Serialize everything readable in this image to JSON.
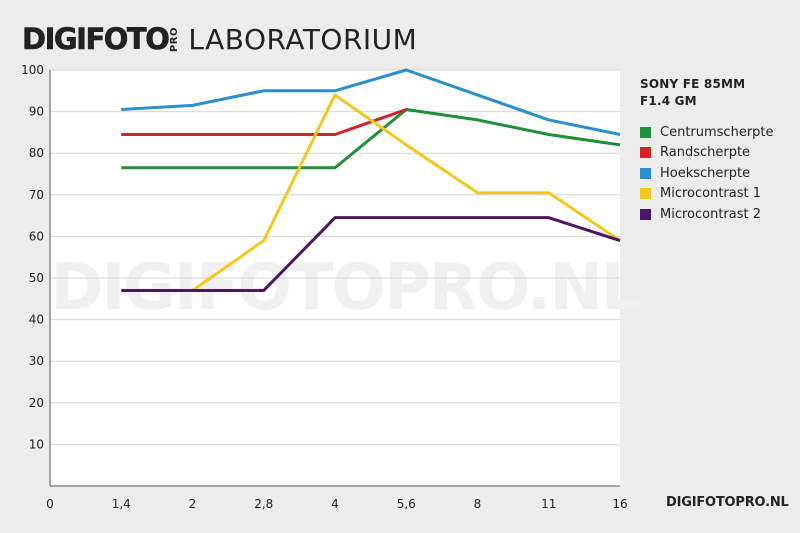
{
  "header": {
    "brand": "DIGIFOTO",
    "brand_pro": "PRO",
    "section": "LABORATORIUM"
  },
  "watermark": "DIGIFOTOPRO.NL",
  "footer": {
    "url": "DIGIFOTOPRO.NL"
  },
  "colors": {
    "background": "#ececec",
    "plot_background": "#ffffff",
    "grid": "#d6d6d6",
    "axis": "#555555"
  },
  "chart_data": {
    "type": "line",
    "title": "SONY FE 85MM F1.4 GM",
    "title_lines": [
      "SONY FE 85MM",
      "F1.4 GM"
    ],
    "xlabel": "",
    "ylabel": "",
    "categories": [
      "0",
      "1,4",
      "2",
      "2,8",
      "4",
      "5,6",
      "8",
      "11",
      "16"
    ],
    "ylim": [
      0,
      100
    ],
    "yticks": [
      10,
      20,
      30,
      40,
      50,
      60,
      70,
      80,
      90,
      100
    ],
    "grid": true,
    "legend_position": "right",
    "series": [
      {
        "name": "Centrumscherpte",
        "color": "#1f8f3a",
        "values": [
          null,
          76.5,
          76.5,
          76.5,
          76.5,
          90.5,
          88,
          84.5,
          82
        ]
      },
      {
        "name": "Randscherpte",
        "color": "#d6202a",
        "values": [
          null,
          84.5,
          84.5,
          84.5,
          84.5,
          90.5,
          null,
          null,
          null
        ]
      },
      {
        "name": "Hoekscherpte",
        "color": "#2a8fcc",
        "values": [
          null,
          90.5,
          91.5,
          95,
          95,
          100,
          94,
          88,
          84.5
        ]
      },
      {
        "name": "Microcontrast 1",
        "color": "#f2c81f",
        "values": [
          null,
          null,
          47,
          59,
          94,
          82,
          70.5,
          70.5,
          59
        ]
      },
      {
        "name": "Microcontrast 2",
        "color": "#4e1466",
        "values": [
          null,
          47,
          47,
          47,
          64.5,
          64.5,
          64.5,
          64.5,
          59
        ]
      }
    ]
  }
}
